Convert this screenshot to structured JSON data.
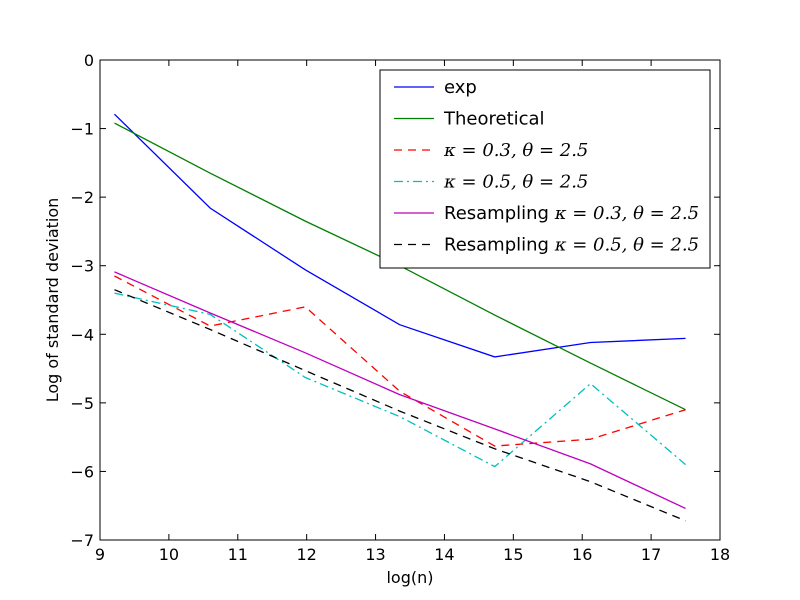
{
  "chart_data": {
    "type": "line",
    "title": "",
    "xlabel": "log(n)",
    "ylabel": "Log of standard deviation",
    "xlim": [
      9,
      18
    ],
    "ylim": [
      -7,
      0
    ],
    "xticks": [
      9,
      10,
      11,
      12,
      13,
      14,
      15,
      16,
      17,
      18
    ],
    "yticks": [
      0,
      -1,
      -2,
      -3,
      -4,
      -5,
      -6,
      -7
    ],
    "xtick_labels": [
      "9",
      "10",
      "11",
      "12",
      "13",
      "14",
      "15",
      "16",
      "17",
      "18"
    ],
    "ytick_labels": [
      "0",
      "−1",
      "−2",
      "−3",
      "−4",
      "−5",
      "−6",
      "−7"
    ],
    "grid": false,
    "legend_position": "top-right",
    "x": [
      9.21,
      10.6,
      11.98,
      13.35,
      14.73,
      16.12,
      17.5
    ],
    "series": [
      {
        "name": "exp",
        "label_prefix": "exp",
        "label_math": "",
        "color": "#0000ff",
        "style": "solid",
        "values": [
          -0.79,
          -2.16,
          -3.06,
          -3.86,
          -4.33,
          -4.12,
          -4.06
        ]
      },
      {
        "name": "Theoretical",
        "label_prefix": "Theoretical",
        "label_math": "",
        "color": "#008000",
        "style": "solid",
        "values": [
          -0.92,
          -1.65,
          -2.35,
          -3.0,
          -3.72,
          -4.42,
          -5.1
        ]
      },
      {
        "name": "kappa=0.3, theta=2.5",
        "label_prefix": "",
        "label_math": "κ = 0.3, θ = 2.5",
        "color": "#ff0000",
        "style": "dashed",
        "values": [
          -3.15,
          -3.88,
          -3.6,
          -4.83,
          -5.63,
          -5.53,
          -5.1
        ]
      },
      {
        "name": "kappa=0.5, theta=2.5",
        "label_prefix": "",
        "label_math": "κ = 0.5, θ = 2.5",
        "color": "#00bfbf",
        "style": "dashdot",
        "values": [
          -3.4,
          -3.71,
          -4.63,
          -5.2,
          -5.93,
          -4.72,
          -5.9
        ]
      },
      {
        "name": "Resampling kappa=0.3, theta=2.5",
        "label_prefix": "Resampling ",
        "label_math": "κ = 0.3, θ = 2.5",
        "color": "#bf00bf",
        "style": "solid",
        "values": [
          -3.09,
          -3.69,
          -4.27,
          -4.88,
          -5.38,
          -5.89,
          -6.54
        ]
      },
      {
        "name": "Resampling kappa=0.5, theta=2.5",
        "label_prefix": "Resampling ",
        "label_math": "κ = 0.5, θ = 2.5",
        "color": "#000000",
        "style": "dashed",
        "values": [
          -3.35,
          -3.93,
          -4.53,
          -5.12,
          -5.67,
          -6.15,
          -6.72
        ]
      }
    ]
  }
}
